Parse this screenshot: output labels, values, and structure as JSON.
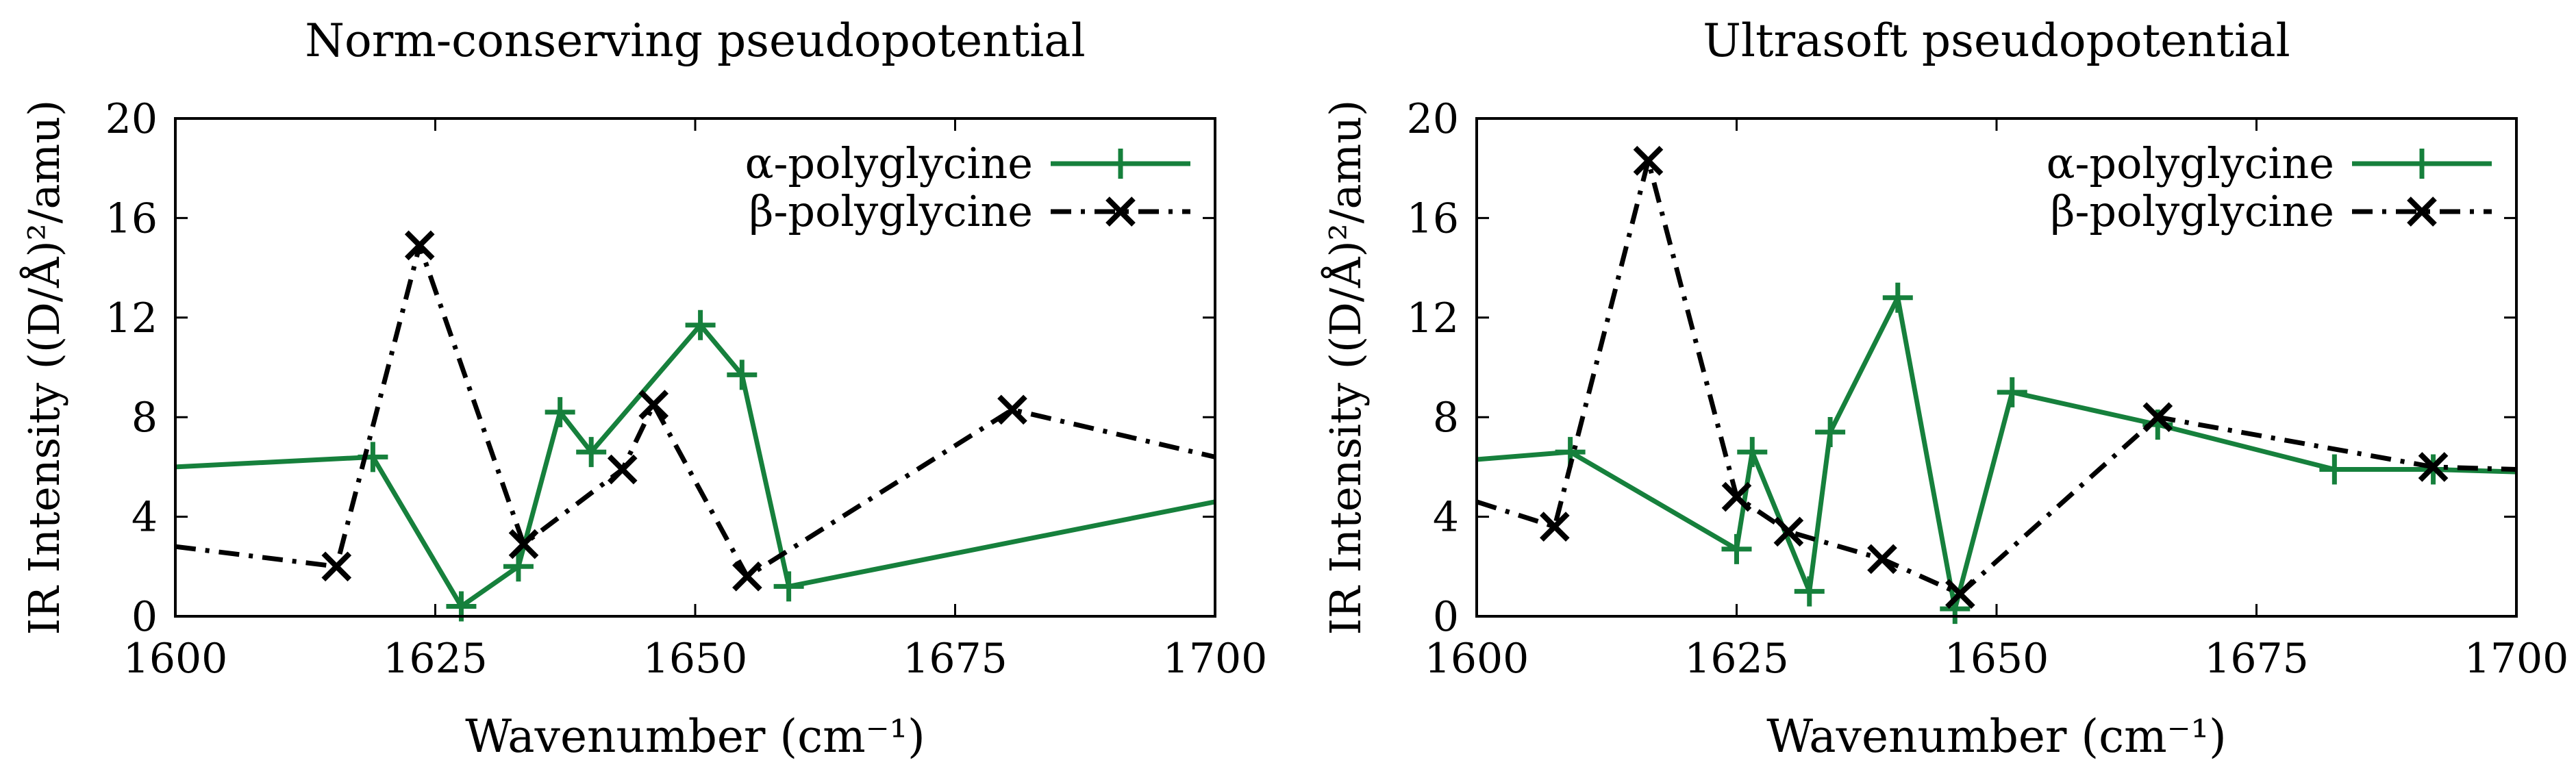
{
  "figure": {
    "colors": {
      "alpha": "#16803c",
      "beta": "#000000",
      "frame": "#000000",
      "background": "#ffffff"
    }
  },
  "chart_data": [
    {
      "type": "line",
      "title": "Norm-conserving pseudopotential",
      "xlabel": "Wavenumber (cm⁻¹)",
      "ylabel": "IR Intensity ((D/Å)²/amu)",
      "xlim": [
        1600,
        1700
      ],
      "ylim": [
        0,
        20
      ],
      "xticks": [
        1600,
        1625,
        1650,
        1675,
        1700
      ],
      "yticks": [
        0,
        4,
        8,
        12,
        16,
        20
      ],
      "legend_position": "top-right",
      "series": [
        {
          "name": "α-polyglycine",
          "color": "#16803c",
          "style": "solid",
          "marker": "plus",
          "x": [
            1600,
            1619,
            1627.5,
            1633,
            1637,
            1640,
            1650.5,
            1654.5,
            1659,
            1700
          ],
          "y": [
            6.0,
            6.4,
            0.4,
            2.0,
            8.2,
            6.6,
            11.7,
            9.7,
            1.2,
            4.6
          ],
          "marked": [
            false,
            true,
            true,
            true,
            true,
            true,
            true,
            true,
            true,
            false
          ]
        },
        {
          "name": "β-polyglycine",
          "color": "#000000",
          "style": "dashdot",
          "marker": "x",
          "x": [
            1600,
            1615.5,
            1623.5,
            1633.5,
            1643,
            1646,
            1655,
            1680.5,
            1700
          ],
          "y": [
            2.8,
            2.0,
            14.9,
            2.9,
            5.9,
            8.5,
            1.6,
            8.3,
            6.4
          ],
          "marked": [
            false,
            true,
            true,
            true,
            true,
            true,
            true,
            true,
            false
          ]
        }
      ]
    },
    {
      "type": "line",
      "title": "Ultrasoft pseudopotential",
      "xlabel": "Wavenumber (cm⁻¹)",
      "ylabel": "IR Intensity ((D/Å)²/amu)",
      "xlim": [
        1600,
        1700
      ],
      "ylim": [
        0,
        20
      ],
      "xticks": [
        1600,
        1625,
        1650,
        1675,
        1700
      ],
      "yticks": [
        0,
        4,
        8,
        12,
        16,
        20
      ],
      "legend_position": "top-right",
      "series": [
        {
          "name": "α-polyglycine",
          "color": "#16803c",
          "style": "solid",
          "marker": "plus",
          "x": [
            1600,
            1609,
            1625,
            1626.5,
            1632,
            1634,
            1640.5,
            1646,
            1651.5,
            1665.5,
            1682.5,
            1692,
            1700
          ],
          "y": [
            6.3,
            6.6,
            2.7,
            6.6,
            1.0,
            7.4,
            12.8,
            0.3,
            9.0,
            7.7,
            5.9,
            5.9,
            5.8
          ],
          "marked": [
            false,
            true,
            true,
            true,
            true,
            true,
            true,
            true,
            true,
            true,
            true,
            true,
            false
          ]
        },
        {
          "name": "β-polyglycine",
          "color": "#000000",
          "style": "dashdot",
          "marker": "x",
          "x": [
            1600,
            1607.5,
            1616.5,
            1625,
            1630,
            1639,
            1646.5,
            1665.5,
            1692,
            1700
          ],
          "y": [
            4.6,
            3.6,
            18.3,
            4.8,
            3.4,
            2.3,
            0.9,
            8.0,
            6.0,
            5.9
          ],
          "marked": [
            false,
            true,
            true,
            true,
            true,
            true,
            true,
            true,
            true,
            false
          ]
        }
      ]
    }
  ]
}
